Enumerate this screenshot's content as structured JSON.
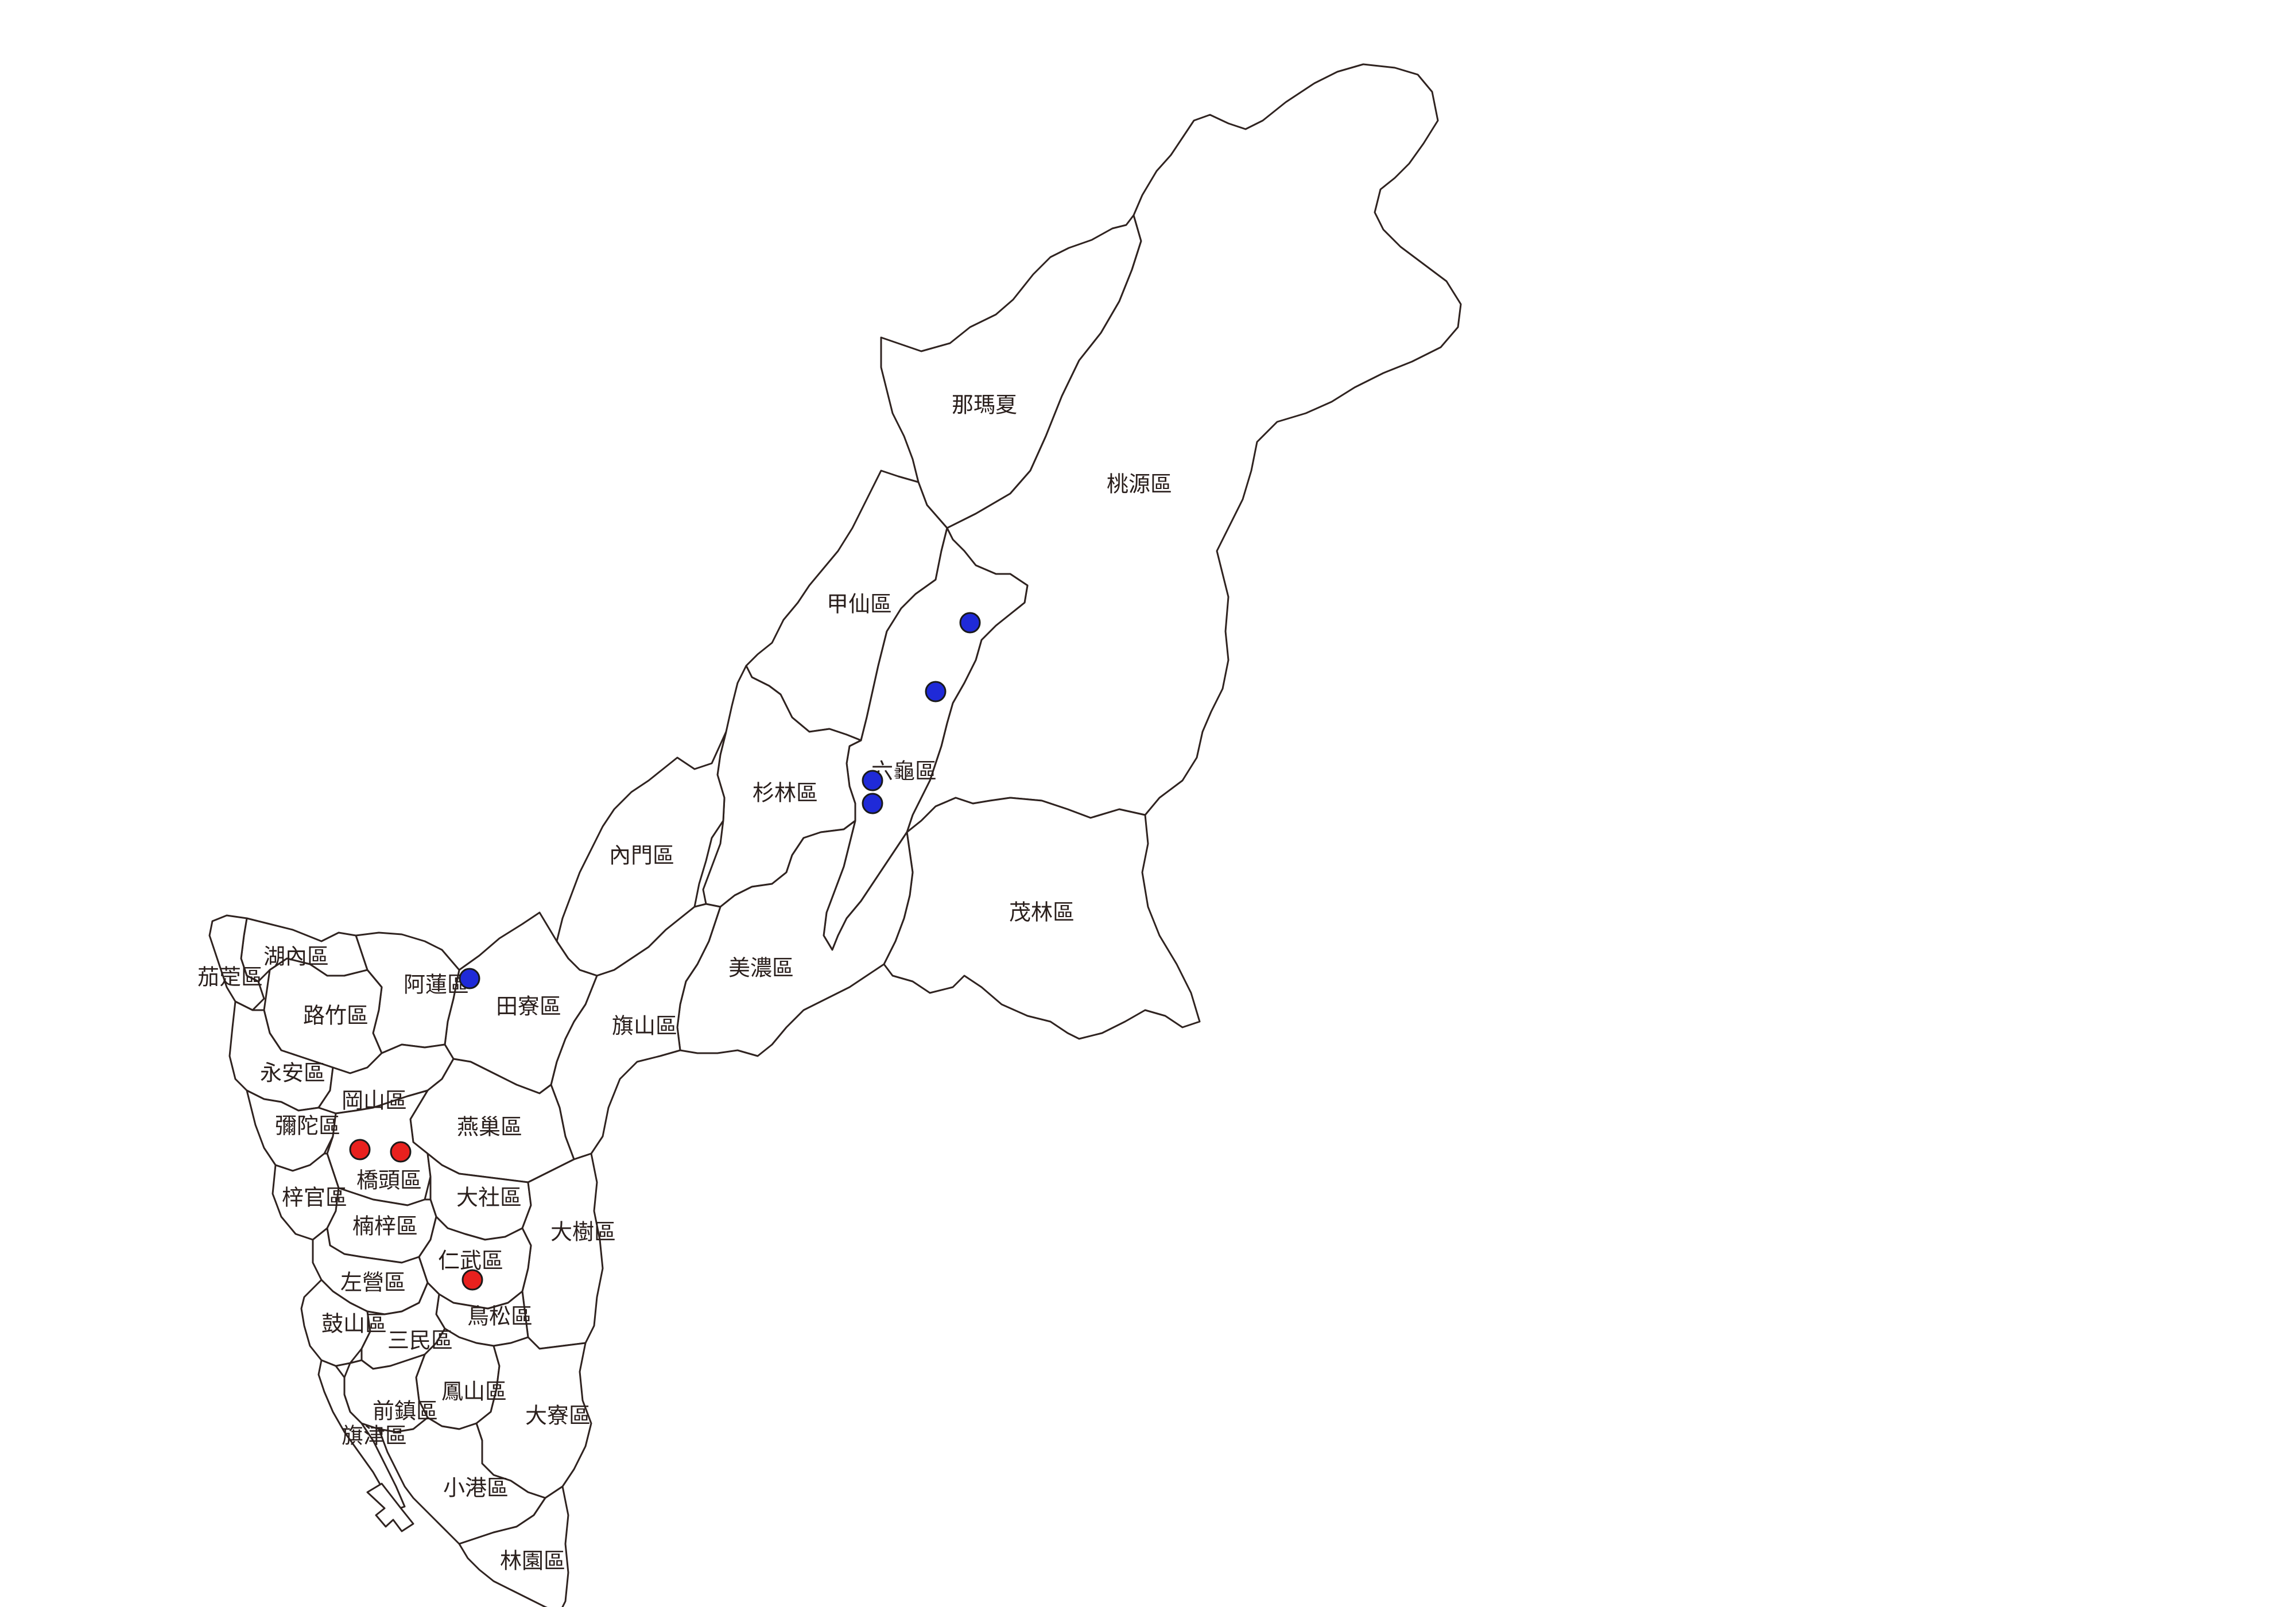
{
  "map": {
    "colors": {
      "background": "#ffffff",
      "boundary": "#2f2320",
      "label": "#2a1f1c"
    },
    "districts": [
      {
        "id": "namasia",
        "label": "那瑪夏"
      },
      {
        "id": "taoyuan",
        "label": "桃源區"
      },
      {
        "id": "jiaxian",
        "label": "甲仙區"
      },
      {
        "id": "liugui",
        "label": "六龜區"
      },
      {
        "id": "shanlin",
        "label": "杉林區"
      },
      {
        "id": "neimen",
        "label": "內門區"
      },
      {
        "id": "maolin",
        "label": "茂林區"
      },
      {
        "id": "meinong",
        "label": "美濃區"
      },
      {
        "id": "qishan",
        "label": "旗山區"
      },
      {
        "id": "tianliao",
        "label": "田寮區"
      },
      {
        "id": "alian",
        "label": "阿蓮區"
      },
      {
        "id": "hunei",
        "label": "湖內區"
      },
      {
        "id": "qieding",
        "label": "茄萣區"
      },
      {
        "id": "luzhu",
        "label": "路竹區"
      },
      {
        "id": "yongan",
        "label": "永安區"
      },
      {
        "id": "gangshan",
        "label": "岡山區"
      },
      {
        "id": "mituo",
        "label": "彌陀區"
      },
      {
        "id": "yanchao",
        "label": "燕巢區"
      },
      {
        "id": "qiaotou",
        "label": "橋頭區"
      },
      {
        "id": "ziguan",
        "label": "梓官區"
      },
      {
        "id": "dashe",
        "label": "大社區"
      },
      {
        "id": "nanzi",
        "label": "楠梓區"
      },
      {
        "id": "dashu",
        "label": "大樹區"
      },
      {
        "id": "renwu",
        "label": "仁武區"
      },
      {
        "id": "zuoying",
        "label": "左營區"
      },
      {
        "id": "niaosong",
        "label": "鳥松區"
      },
      {
        "id": "gushan",
        "label": "鼓山區"
      },
      {
        "id": "sanmin",
        "label": "三民區"
      },
      {
        "id": "fengshan",
        "label": "鳳山區"
      },
      {
        "id": "daliao",
        "label": "大寮區"
      },
      {
        "id": "qianzhen",
        "label": "前鎮區"
      },
      {
        "id": "qijin",
        "label": "旗津區"
      },
      {
        "id": "xiaogang",
        "label": "小港區"
      },
      {
        "id": "linyuan",
        "label": "林園區"
      }
    ],
    "markers": [
      {
        "color": "#1f2ad8",
        "district": "liugui"
      },
      {
        "color": "#1f2ad8",
        "district": "liugui"
      },
      {
        "color": "#1f2ad8",
        "district": "liugui"
      },
      {
        "color": "#1f2ad8",
        "district": "liugui"
      },
      {
        "color": "#1f2ad8",
        "district": "alian"
      },
      {
        "color": "#e8211e",
        "district": "qiaotou"
      },
      {
        "color": "#e8211e",
        "district": "qiaotou"
      },
      {
        "color": "#e8211e",
        "district": "renwu"
      }
    ]
  }
}
